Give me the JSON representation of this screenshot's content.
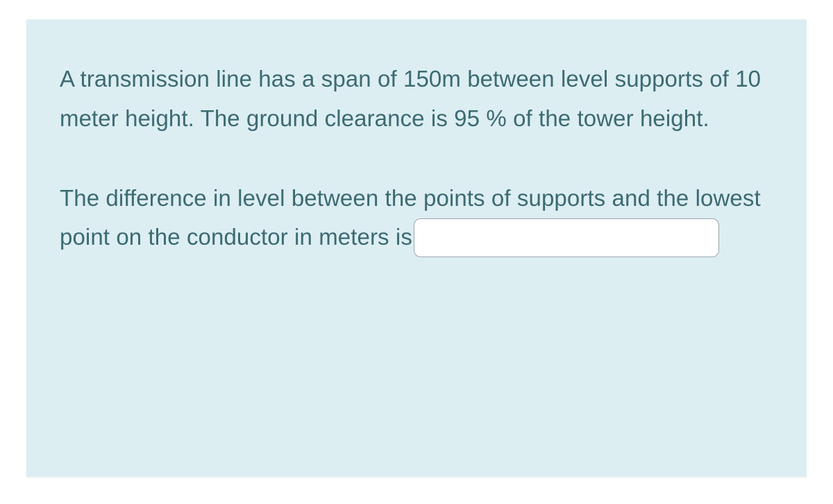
{
  "question": {
    "paragraph1": "A transmission line has a span of 150m between level supports of 10 meter height. The ground clearance is 95 % of the tower height.",
    "paragraph2_pre": "The difference in level between the points of supports and the lowest point on the conductor in meters is",
    "answer_value": "",
    "answer_placeholder": ""
  },
  "colors": {
    "panel_bg": "#dceef2",
    "text": "#3c6a72",
    "input_border": "#9aa7ad",
    "input_bg": "#ffffff"
  }
}
